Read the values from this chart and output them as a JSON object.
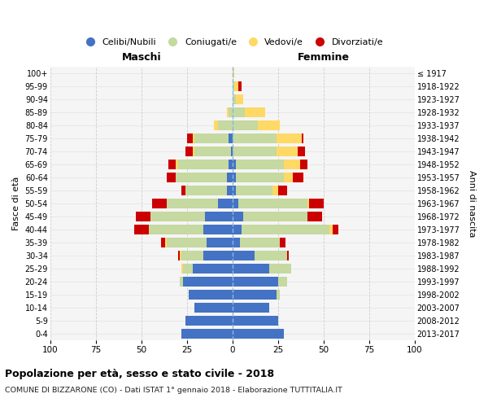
{
  "age_groups": [
    "0-4",
    "5-9",
    "10-14",
    "15-19",
    "20-24",
    "25-29",
    "30-34",
    "35-39",
    "40-44",
    "45-49",
    "50-54",
    "55-59",
    "60-64",
    "65-69",
    "70-74",
    "75-79",
    "80-84",
    "85-89",
    "90-94",
    "95-99",
    "100+"
  ],
  "birth_years": [
    "2013-2017",
    "2008-2012",
    "2003-2007",
    "1998-2002",
    "1993-1997",
    "1988-1992",
    "1983-1987",
    "1978-1982",
    "1973-1977",
    "1968-1972",
    "1963-1967",
    "1958-1962",
    "1953-1957",
    "1948-1952",
    "1943-1947",
    "1938-1942",
    "1933-1937",
    "1928-1932",
    "1923-1927",
    "1918-1922",
    "≤ 1917"
  ],
  "male": {
    "celibe": [
      28,
      26,
      21,
      24,
      27,
      22,
      16,
      14,
      16,
      15,
      8,
      3,
      3,
      2,
      1,
      2,
      0,
      0,
      0,
      0,
      0
    ],
    "coniugato": [
      0,
      0,
      0,
      0,
      2,
      5,
      12,
      22,
      30,
      30,
      28,
      23,
      28,
      28,
      20,
      19,
      8,
      2,
      0,
      0,
      0
    ],
    "vedovo": [
      0,
      0,
      0,
      0,
      0,
      1,
      1,
      1,
      0,
      0,
      0,
      0,
      0,
      1,
      1,
      1,
      2,
      1,
      0,
      0,
      0
    ],
    "divorziato": [
      0,
      0,
      0,
      0,
      0,
      0,
      1,
      2,
      8,
      8,
      8,
      2,
      5,
      4,
      4,
      3,
      0,
      0,
      0,
      0,
      0
    ]
  },
  "female": {
    "nubile": [
      28,
      25,
      20,
      24,
      25,
      20,
      12,
      4,
      5,
      6,
      3,
      2,
      2,
      2,
      0,
      0,
      0,
      0,
      0,
      0,
      0
    ],
    "coniugata": [
      0,
      0,
      0,
      2,
      5,
      12,
      18,
      22,
      48,
      35,
      38,
      20,
      26,
      26,
      24,
      24,
      14,
      7,
      2,
      1,
      0
    ],
    "vedova": [
      0,
      0,
      0,
      0,
      0,
      0,
      0,
      0,
      2,
      0,
      1,
      3,
      5,
      9,
      12,
      14,
      12,
      11,
      4,
      2,
      1
    ],
    "divorziata": [
      0,
      0,
      0,
      0,
      0,
      0,
      1,
      3,
      3,
      8,
      8,
      5,
      6,
      4,
      4,
      1,
      0,
      0,
      0,
      2,
      0
    ]
  },
  "colors": {
    "celibe": "#4472C4",
    "coniugato": "#C5D9A0",
    "vedovo": "#FFD966",
    "divorziato": "#CC0000"
  },
  "xlim": 100,
  "title": "Popolazione per età, sesso e stato civile - 2018",
  "subtitle": "COMUNE DI BIZZARONE (CO) - Dati ISTAT 1° gennaio 2018 - Elaborazione TUTTITALIA.IT",
  "label_maschi": "Maschi",
  "label_femmine": "Femmine",
  "ylabel_left": "Fasce di età",
  "ylabel_right": "Anni di nascita",
  "bg_color": "#f5f5f5",
  "grid_color": "#cccccc",
  "legend_labels": [
    "Celibi/Nubili",
    "Coniugati/e",
    "Vedovi/e",
    "Divorziati/e"
  ]
}
